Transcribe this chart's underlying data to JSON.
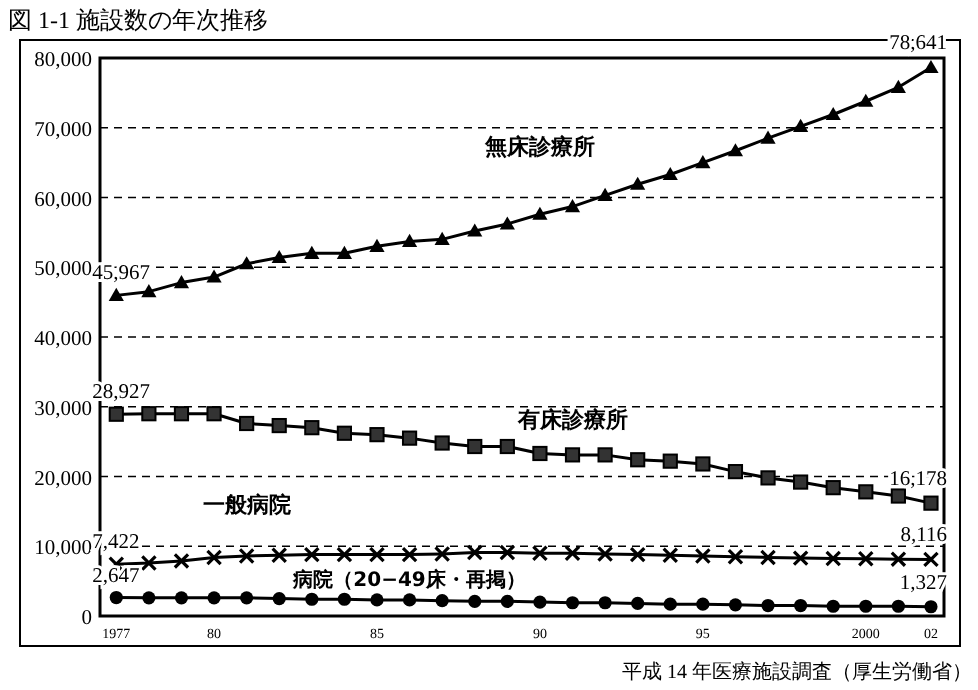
{
  "chart_data": {
    "type": "line",
    "title": "図 1-1 施設数の年次推移",
    "x": [
      1977,
      1978,
      1979,
      1980,
      1981,
      1982,
      1983,
      1984,
      1985,
      1986,
      1987,
      1988,
      1989,
      1990,
      1991,
      1992,
      1993,
      1994,
      1995,
      1996,
      1997,
      1998,
      1999,
      2000,
      2001,
      2002
    ],
    "xlim": [
      1976.5,
      2002.4
    ],
    "xticks": [
      1977,
      {
        "value": 1980,
        "label": "80"
      },
      {
        "value": 1985,
        "label": "85"
      },
      {
        "value": 1990,
        "label": "90"
      },
      {
        "value": 1995,
        "label": "95"
      },
      2000,
      {
        "value": 2002,
        "label": "02"
      }
    ],
    "ylim": [
      0,
      80000
    ],
    "yticks": [
      0,
      {
        "value": 10000,
        "label": "10,000"
      },
      {
        "value": 20000,
        "label": "20,000"
      },
      {
        "value": 30000,
        "label": "30,000"
      },
      {
        "value": 40000,
        "label": "40,000"
      },
      {
        "value": 50000,
        "label": "50,000"
      },
      {
        "value": 60000,
        "label": "60,000"
      },
      {
        "value": 70000,
        "label": "70,000"
      },
      {
        "value": 80000,
        "label": "80,000"
      }
    ],
    "grid": "y",
    "line_style": "solid",
    "series": [
      {
        "name": "無床診療所",
        "color": "#000000",
        "marker": "triangle",
        "values": [
          45967,
          46500,
          47800,
          48600,
          50500,
          51400,
          52000,
          52000,
          53000,
          53700,
          54000,
          55200,
          56200,
          57600,
          58700,
          60300,
          61900,
          63300,
          65000,
          66700,
          68500,
          70200,
          71900,
          73800,
          75800,
          78641
        ],
        "value_labels": [
          "45,967",
          null,
          null,
          null,
          null,
          null,
          null,
          null,
          null,
          null,
          null,
          null,
          null,
          null,
          null,
          null,
          null,
          null,
          null,
          null,
          null,
          null,
          null,
          null,
          null,
          "78,641"
        ]
      },
      {
        "name": "有床診療所",
        "color": "#000000",
        "marker": "square",
        "values": [
          28927,
          29000,
          29000,
          29000,
          27600,
          27300,
          27000,
          26200,
          26000,
          25500,
          24800,
          24300,
          24300,
          23300,
          23100,
          23100,
          22400,
          22200,
          21800,
          20700,
          19800,
          19200,
          18400,
          17800,
          17200,
          16178
        ],
        "value_labels": [
          "28,927",
          null,
          null,
          null,
          null,
          null,
          null,
          null,
          null,
          null,
          null,
          null,
          null,
          null,
          null,
          null,
          null,
          null,
          null,
          null,
          null,
          null,
          null,
          null,
          null,
          "16,178"
        ]
      },
      {
        "name": "一般病院",
        "color": "#000000",
        "marker": "cross",
        "values": [
          7422,
          7600,
          7900,
          8400,
          8600,
          8700,
          8800,
          8800,
          8800,
          8800,
          8900,
          9100,
          9100,
          9000,
          9000,
          8900,
          8800,
          8700,
          8600,
          8500,
          8400,
          8300,
          8250,
          8200,
          8150,
          8116
        ],
        "value_labels": [
          "7,422",
          null,
          null,
          null,
          null,
          null,
          null,
          null,
          null,
          null,
          null,
          null,
          null,
          null,
          null,
          null,
          null,
          null,
          null,
          null,
          null,
          null,
          null,
          null,
          null,
          "8,116"
        ]
      },
      {
        "name": "病院（20−49床・再掲）",
        "color": "#000000",
        "marker": "circle",
        "values": [
          2647,
          2600,
          2600,
          2600,
          2600,
          2500,
          2400,
          2400,
          2300,
          2300,
          2200,
          2100,
          2100,
          2000,
          1900,
          1900,
          1800,
          1700,
          1700,
          1600,
          1500,
          1500,
          1400,
          1400,
          1400,
          1327
        ],
        "value_labels": [
          "2,647",
          null,
          null,
          null,
          null,
          null,
          null,
          null,
          null,
          null,
          null,
          null,
          null,
          null,
          null,
          null,
          null,
          null,
          null,
          null,
          null,
          null,
          null,
          null,
          null,
          "1,327"
        ]
      }
    ],
    "annotations": [
      "平成 14 年医療施設調査（厚生労働省）"
    ]
  }
}
